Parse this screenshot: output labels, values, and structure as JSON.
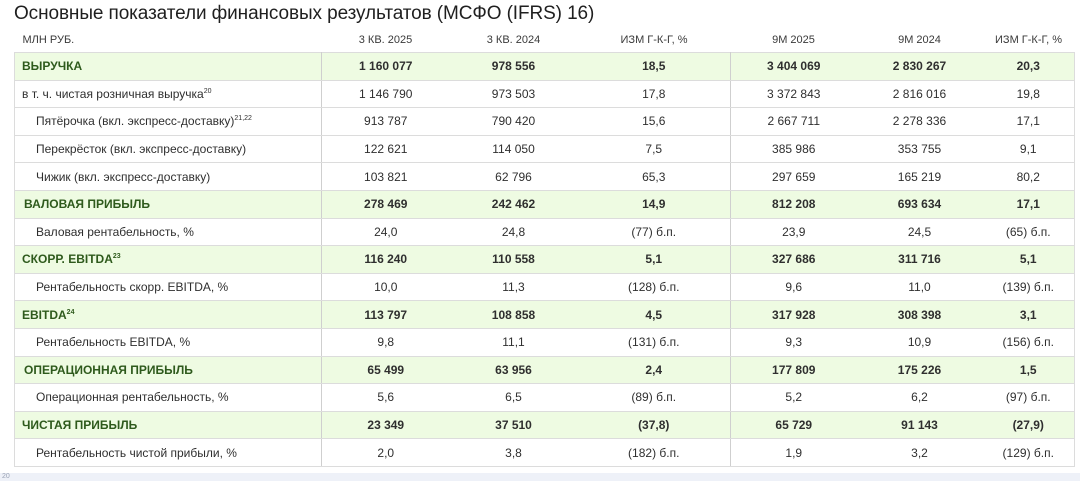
{
  "title": "Основные показатели финансовых результатов (МСФО (IFRS) 16)",
  "table": {
    "headers": [
      "МЛН РУБ.",
      "3 КВ. 2025",
      "3 КВ. 2024",
      "ИЗМ Г-К-Г, %",
      "9М 2025",
      "9М 2024",
      "ИЗМ Г-К-Г, %"
    ],
    "rows": [
      {
        "type": "major",
        "label": "ВЫРУЧКА",
        "sup": "",
        "values": [
          "1 160 077",
          "978 556",
          "18,5",
          "3 404 069",
          "2 830 267",
          "20,3"
        ]
      },
      {
        "type": "minor",
        "label": "в т. ч. чистая розничная выручка",
        "sup": "20",
        "values": [
          "1 146 790",
          "973 503",
          "17,8",
          "3 372 843",
          "2 816 016",
          "19,8"
        ]
      },
      {
        "type": "minor-indent",
        "label": "Пятёрочка (вкл. экспресс-доставку)",
        "sup": "21,22",
        "values": [
          "913 787",
          "790 420",
          "15,6",
          "2 667 711",
          "2 278 336",
          "17,1"
        ]
      },
      {
        "type": "minor-indent",
        "label": "Перекрёсток (вкл. экспресс-доставку)",
        "sup": "",
        "values": [
          "122 621",
          "114 050",
          "7,5",
          "385 986",
          "353 755",
          "9,1"
        ]
      },
      {
        "type": "minor-indent",
        "label": "Чижик (вкл. экспресс-доставку)",
        "sup": "",
        "values": [
          "103 821",
          "62 796",
          "65,3",
          "297 659",
          "165 219",
          "80,2"
        ]
      },
      {
        "type": "major-indent",
        "label": "ВАЛОВАЯ ПРИБЫЛЬ",
        "sup": "",
        "values": [
          "278 469",
          "242 462",
          "14,9",
          "812 208",
          "693 634",
          "17,1"
        ]
      },
      {
        "type": "minor-indent",
        "label": "Валовая рентабельность, %",
        "sup": "",
        "values": [
          "24,0",
          "24,8",
          "(77) б.п.",
          "23,9",
          "24,5",
          "(65) б.п."
        ]
      },
      {
        "type": "major",
        "label": "СКОРР. EBITDA",
        "sup": "23",
        "values": [
          "116 240",
          "110 558",
          "5,1",
          "327 686",
          "311 716",
          "5,1"
        ]
      },
      {
        "type": "minor-indent",
        "label": "Рентабельность скорр. EBITDA, %",
        "sup": "",
        "values": [
          "10,0",
          "11,3",
          "(128) б.п.",
          "9,6",
          "11,0",
          "(139) б.п."
        ]
      },
      {
        "type": "major",
        "label": "EBITDA",
        "sup": "24",
        "values": [
          "113 797",
          "108 858",
          "4,5",
          "317 928",
          "308 398",
          "3,1"
        ]
      },
      {
        "type": "minor-indent",
        "label": "Рентабельность EBITDA, %",
        "sup": "",
        "values": [
          "9,8",
          "11,1",
          "(131) б.п.",
          "9,3",
          "10,9",
          "(156) б.п."
        ]
      },
      {
        "type": "major-indent",
        "label": "ОПЕРАЦИОННАЯ ПРИБЫЛЬ",
        "sup": "",
        "values": [
          "65 499",
          "63 956",
          "2,4",
          "177 809",
          "175 226",
          "1,5"
        ]
      },
      {
        "type": "minor-indent",
        "label": "Операционная рентабельность, %",
        "sup": "",
        "values": [
          "5,6",
          "6,5",
          "(89) б.п.",
          "5,2",
          "6,2",
          "(97) б.п."
        ]
      },
      {
        "type": "major",
        "label": "ЧИСТАЯ ПРИБЫЛЬ",
        "sup": "",
        "values": [
          "23 349",
          "37 510",
          "(37,8)",
          "65 729",
          "91 143",
          "(27,9)"
        ]
      },
      {
        "type": "minor-indent",
        "label": "Рентабельность чистой прибыли, %",
        "sup": "",
        "values": [
          "2,0",
          "3,8",
          "(182) б.п.",
          "1,9",
          "3,2",
          "(129) б.п."
        ]
      }
    ]
  },
  "footnote": {
    "number": "20"
  },
  "colors": {
    "major_row_bg": "#eefbe2",
    "major_row_text": "#2e6b1e",
    "border": "#dcdcdc"
  }
}
